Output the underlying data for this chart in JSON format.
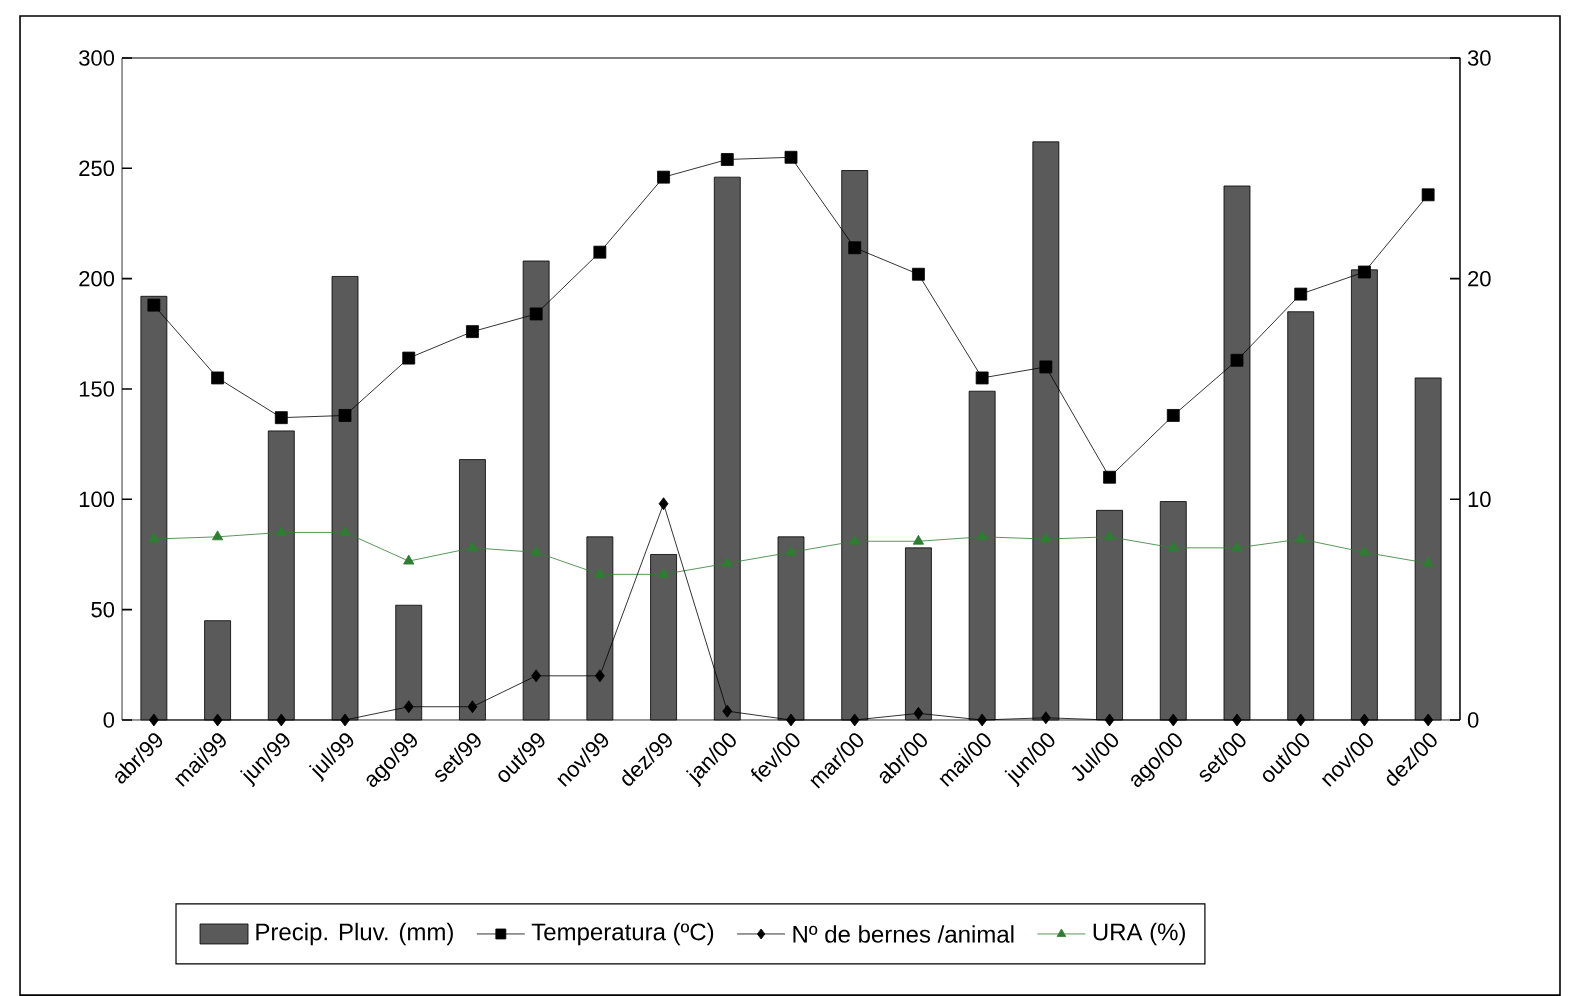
{
  "chart_data": {
    "type": "bar",
    "categories": [
      "abr/99",
      "mai/99",
      "jun/99",
      "jul/99",
      "ago/99",
      "set/99",
      "out/99",
      "nov/99",
      "dez/99",
      "jan/00",
      "fev/00",
      "mar/00",
      "abr/00",
      "mai/00",
      "jun/00",
      "Jul/00",
      "ago/00",
      "set/00",
      "out/00",
      "nov/00",
      "dez/00"
    ],
    "series": [
      {
        "name": "Precip. Pluv. (mm)",
        "color": "#5a5a5a",
        "values": [
          192,
          45,
          131,
          201,
          52,
          118,
          208,
          83,
          75,
          246,
          83,
          249,
          78,
          149,
          262,
          95,
          99,
          242,
          185,
          204,
          155
        ]
      },
      {
        "name": "Temperatura (ºC)",
        "type": "line",
        "axis": "y2",
        "color": "#000000",
        "marker": "square",
        "values": [
          18.8,
          15.5,
          13.7,
          13.8,
          16.4,
          17.6,
          18.4,
          21.2,
          24.6,
          25.4,
          25.5,
          21.4,
          20.2,
          15.5,
          16.0,
          11.0,
          13.8,
          16.3,
          19.3,
          20.3,
          23.8
        ]
      },
      {
        "name": "Nº de bernes /animal",
        "type": "line",
        "axis": "y2",
        "color": "#000000",
        "marker": "diamond",
        "values": [
          0,
          0,
          0,
          0,
          0.6,
          0.6,
          2.0,
          2.0,
          9.8,
          0.4,
          0,
          0,
          0.3,
          0,
          0.1,
          0,
          0,
          0,
          0,
          0,
          0
        ]
      },
      {
        "name": "URA (%)",
        "type": "line",
        "color": "#2e7d32",
        "marker": "triangle",
        "values": [
          82,
          83,
          85,
          85,
          72,
          78,
          76,
          66,
          66,
          71,
          76,
          81,
          81,
          83,
          82,
          83,
          78,
          78,
          82,
          76,
          71
        ]
      }
    ],
    "ylim": [
      0,
      300
    ],
    "yticks": [
      0,
      50,
      100,
      150,
      200,
      250,
      300
    ],
    "y2lim": [
      0,
      30
    ],
    "y2ticks": [
      0,
      10,
      20,
      30
    ],
    "legend": "bottom"
  }
}
